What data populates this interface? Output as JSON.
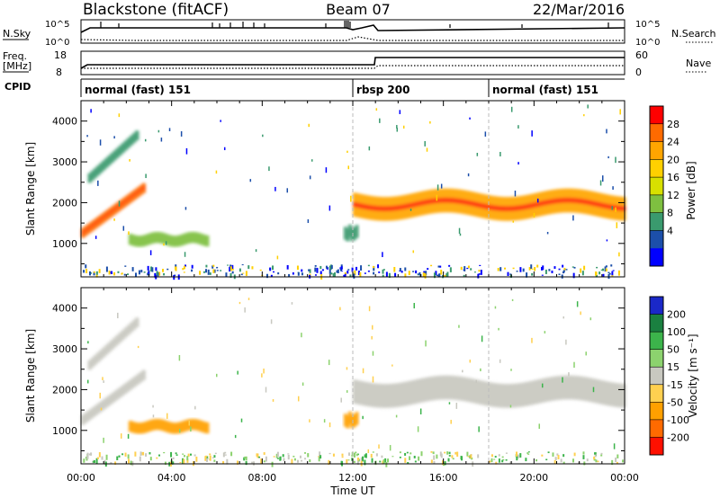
{
  "header": {
    "station": "Blackstone (fitACF)",
    "beam": "Beam 07",
    "date": "22/Mar/2016"
  },
  "panels": {
    "nsky": {
      "label": "N.Sky",
      "tick_hi": "10^5",
      "tick_lo": "10^0",
      "right_label": "N.Search"
    },
    "freq": {
      "label_top": "Freq.",
      "label_unit": "[MHz]",
      "tick_hi": "18",
      "tick_lo": "8",
      "right_hi": "60",
      "right_lo": "0",
      "right_label": "Nave"
    },
    "cpid": {
      "label": "CPID",
      "segments": [
        {
          "name": "normal (fast) 151",
          "start_hour": 0
        },
        {
          "name": "rbsp 200",
          "start_hour": 12
        },
        {
          "name": "normal (fast) 151",
          "start_hour": 18
        }
      ]
    }
  },
  "chart_data": [
    {
      "type": "heatmap",
      "name": "power",
      "ylabel": "Slant Range [km]",
      "ylim": [
        180,
        4500
      ],
      "yticks": [
        1000,
        2000,
        3000,
        4000
      ],
      "colorbar": {
        "label": "Power [dB]",
        "ticks": [
          "28",
          "24",
          "20",
          "16",
          "12",
          "8",
          "4"
        ],
        "colors": [
          "#ff0000",
          "#ff6a00",
          "#ffa500",
          "#ffd000",
          "#d8e000",
          "#7ec040",
          "#3a9a6e",
          "#1c4faa",
          "#0000ff"
        ]
      },
      "features": [
        {
          "t_start": 0.0,
          "t_end": 2.8,
          "range_start": 1150,
          "range_end": 2500,
          "power_db": 26
        },
        {
          "t_start": 0.3,
          "t_end": 2.5,
          "range_start": 2500,
          "range_end": 3800,
          "power_db": 10
        },
        {
          "t_start": 2.1,
          "t_end": 5.6,
          "range_start": 800,
          "range_end": 1400,
          "power_db": 14
        },
        {
          "t_start": 11.6,
          "t_end": 12.2,
          "range_start": 900,
          "range_end": 1600,
          "power_db": 10
        },
        {
          "t_start": 12.0,
          "t_end": 24.0,
          "range_start": 1300,
          "range_end": 2600,
          "power_db": 22
        }
      ]
    },
    {
      "type": "heatmap",
      "name": "velocity",
      "ylabel": "Slant Range [km]",
      "xlabel": "Time UT",
      "ylim": [
        180,
        4500
      ],
      "yticks": [
        1000,
        2000,
        3000,
        4000
      ],
      "xticks": [
        "00:00",
        "04:00",
        "08:00",
        "12:00",
        "16:00",
        "20:00",
        "00:00"
      ],
      "colorbar": {
        "label": "Velocity [m s⁻¹]",
        "ticks": [
          "200",
          "100",
          "50",
          "15",
          "-15",
          "-50",
          "-100",
          "-200"
        ],
        "colors": [
          "#1a28c8",
          "#1a8040",
          "#3cb44b",
          "#8cd26e",
          "#c8c8c0",
          "#ffd050",
          "#ffa000",
          "#ff6a00",
          "#ff1000"
        ]
      },
      "features": [
        {
          "t_start": 0.0,
          "t_end": 2.8,
          "range_start": 1150,
          "range_end": 2500,
          "velocity": 0
        },
        {
          "t_start": 0.3,
          "t_end": 2.5,
          "range_start": 2500,
          "range_end": 3800,
          "velocity": 0
        },
        {
          "t_start": 2.1,
          "t_end": 5.6,
          "range_start": 800,
          "range_end": 1400,
          "velocity": -80
        },
        {
          "t_start": 11.6,
          "t_end": 12.2,
          "range_start": 900,
          "range_end": 1600,
          "velocity": -60
        },
        {
          "t_start": 12.0,
          "t_end": 24.0,
          "range_start": 1300,
          "range_end": 2600,
          "velocity": 0
        }
      ]
    }
  ]
}
